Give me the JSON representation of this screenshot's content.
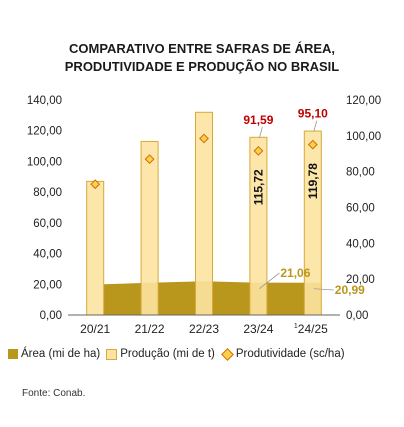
{
  "title_line1": "COMPARATIVO ENTRE SAFRAS DE ÁREA,",
  "title_line2": "PRODUTIVIDADE E PRODUÇÃO NO BRASIL",
  "source": "Fonte: Conab.",
  "colors": {
    "area": "#b9971c",
    "production_fill": "#fde3a0",
    "production_stroke": "#d9a93a",
    "productivity_fill": "#fbd14b",
    "productivity_stroke": "#d46b08",
    "label_red": "#c00000",
    "label_gold": "#b9971c"
  },
  "legend": {
    "area": "Área (mi de ha)",
    "production": "Produção (mi de t)",
    "productivity": "Produtividade (sc/ha)"
  },
  "chart_data": {
    "type": "bar",
    "categories": [
      "20/21",
      "21/22",
      "22/23",
      "23/24",
      "24/25"
    ],
    "y_left_ticks": [
      "0,00",
      "20,00",
      "40,00",
      "60,00",
      "80,00",
      "100,00",
      "120,00",
      "140,00"
    ],
    "y_right_ticks": [
      "0,00",
      "20,00",
      "40,00",
      "60,00",
      "80,00",
      "100,00",
      "120,00"
    ],
    "ylim_left": [
      0,
      140
    ],
    "ylim_right": [
      0,
      120
    ],
    "series": [
      {
        "name": "Área (mi de ha)",
        "type": "area",
        "axis": "left",
        "values": [
          20.0,
          21.0,
          22.0,
          21.06,
          20.99
        ]
      },
      {
        "name": "Produção (mi de t)",
        "type": "bar",
        "axis": "left",
        "values": [
          87.0,
          113.0,
          132.0,
          115.72,
          119.78
        ]
      },
      {
        "name": "Produtividade (sc/ha)",
        "type": "marker",
        "axis": "right",
        "values": [
          73.0,
          87.0,
          98.5,
          91.59,
          95.1
        ]
      }
    ],
    "data_labels": {
      "production": [
        "",
        "",
        "",
        "115,72",
        "119,78"
      ],
      "productivity": [
        "",
        "",
        "",
        "91,59",
        "95,10"
      ],
      "area": [
        "",
        "",
        "",
        "21,06",
        "20,99"
      ]
    },
    "annotation": "1"
  }
}
